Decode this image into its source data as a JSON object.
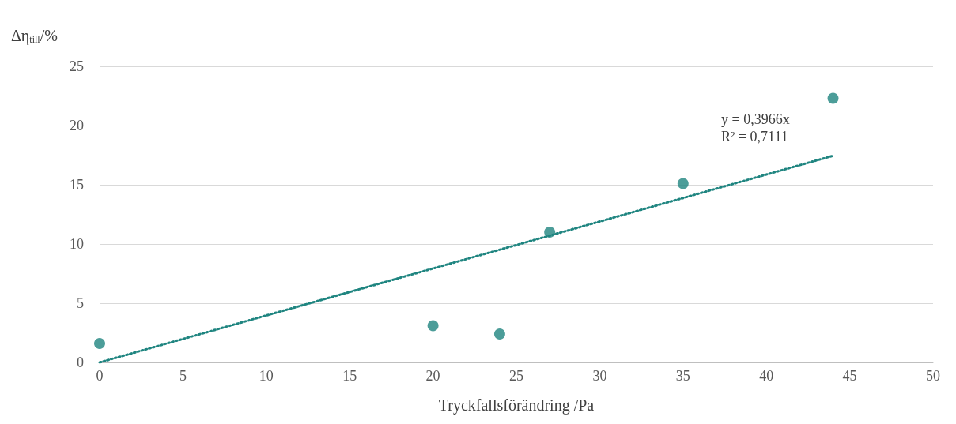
{
  "chart_data": {
    "type": "scatter",
    "xlabel": "Tryckfallsförändring /Pa",
    "ylabel": "Δη$_{till}$/%",
    "series": [
      {
        "color": "#1f8580",
        "x": [
          0,
          20,
          24,
          27,
          35,
          44
        ],
        "values": [
          1.6,
          3.1,
          2.4,
          11.0,
          15.1,
          22.3
        ],
        "marker": "circle"
      },
      {
        "type": "line",
        "color": "#1f8580",
        "x": [
          0,
          44
        ],
        "values": [
          0,
          17.45
        ],
        "line_style": "dotted",
        "marker": "none"
      }
    ],
    "annotations": [
      "y = 0,3966x",
      "R² = 0,7111"
    ],
    "xlim": [
      0,
      50
    ],
    "xticks": [
      0,
      5,
      10,
      15,
      20,
      25,
      30,
      35,
      40,
      45,
      50
    ],
    "ylim": [
      0,
      25
    ],
    "yticks": [
      0,
      5,
      10,
      15,
      20,
      25
    ],
    "grid": "y"
  }
}
